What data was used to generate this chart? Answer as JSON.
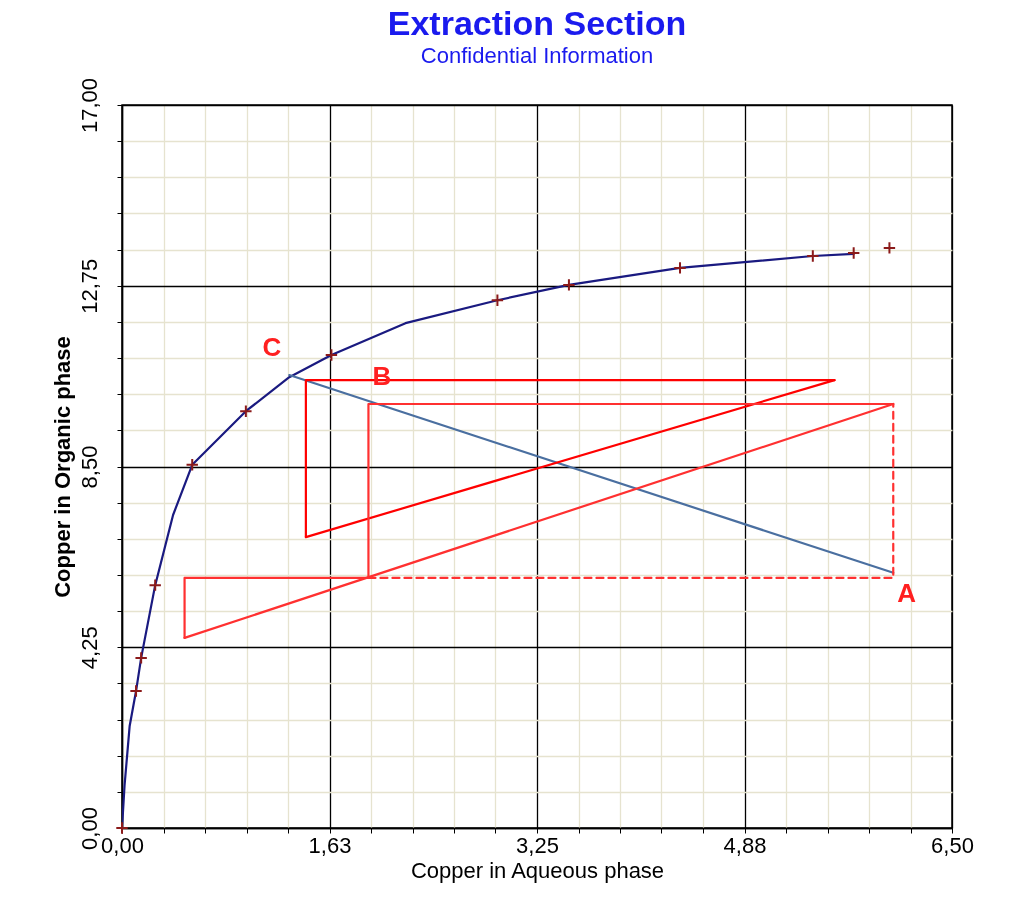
{
  "chart_data": {
    "type": "line",
    "title": "Extraction Section",
    "subtitle": "Confidential Information",
    "xlabel": "Copper in Aqueous phase",
    "ylabel": "Copper in Organic phase",
    "xlim": [
      0,
      6.5
    ],
    "ylim": [
      0,
      17
    ],
    "xticks": [
      {
        "value": 0,
        "label": "0,00"
      },
      {
        "value": 0.325,
        "label": null
      },
      {
        "value": 0.65,
        "label": null
      },
      {
        "value": 0.975,
        "label": null
      },
      {
        "value": 1.3,
        "label": null
      },
      {
        "value": 1.625,
        "label": "1,63"
      },
      {
        "value": 1.95,
        "label": null
      },
      {
        "value": 2.275,
        "label": null
      },
      {
        "value": 2.6,
        "label": null
      },
      {
        "value": 2.925,
        "label": null
      },
      {
        "value": 3.25,
        "label": "3,25"
      },
      {
        "value": 3.575,
        "label": null
      },
      {
        "value": 3.9,
        "label": null
      },
      {
        "value": 4.225,
        "label": null
      },
      {
        "value": 4.55,
        "label": null
      },
      {
        "value": 4.875,
        "label": "4,88"
      },
      {
        "value": 5.2,
        "label": null
      },
      {
        "value": 5.525,
        "label": null
      },
      {
        "value": 5.85,
        "label": null
      },
      {
        "value": 6.175,
        "label": null
      },
      {
        "value": 6.5,
        "label": "6,50"
      }
    ],
    "yticks": [
      {
        "value": 0,
        "label": "0,00"
      },
      {
        "value": 0.85,
        "label": null
      },
      {
        "value": 1.7,
        "label": null
      },
      {
        "value": 2.55,
        "label": null
      },
      {
        "value": 3.4,
        "label": null
      },
      {
        "value": 4.25,
        "label": "4,25"
      },
      {
        "value": 5.1,
        "label": null
      },
      {
        "value": 5.95,
        "label": null
      },
      {
        "value": 6.8,
        "label": null
      },
      {
        "value": 7.65,
        "label": null
      },
      {
        "value": 8.5,
        "label": "8,50"
      },
      {
        "value": 9.35,
        "label": null
      },
      {
        "value": 10.2,
        "label": null
      },
      {
        "value": 11.05,
        "label": null
      },
      {
        "value": 11.9,
        "label": null
      },
      {
        "value": 12.75,
        "label": "12,75"
      },
      {
        "value": 13.6,
        "label": null
      },
      {
        "value": 14.45,
        "label": null
      },
      {
        "value": 15.3,
        "label": null
      },
      {
        "value": 16.15,
        "label": null
      },
      {
        "value": 17,
        "label": "17,00"
      }
    ],
    "grid": true,
    "series": [
      {
        "color": "#1a1a80",
        "x": [
          0,
          0.02,
          0.06,
          0.11,
          0.15,
          0.26,
          0.4,
          0.55,
          0.97,
          1.31,
          1.64,
          2.22,
          2.94,
          3.5,
          4.37,
          5.41,
          5.73
        ],
        "values": [
          0,
          1.0,
          2.4,
          3.22,
          4.0,
          5.71,
          7.36,
          8.54,
          9.8,
          10.6,
          11.12,
          11.87,
          12.41,
          12.77,
          13.17,
          13.45,
          13.5
        ]
      },
      {
        "type": "scatter",
        "marker": "cross",
        "color": "#8b1a1a",
        "x": [
          0,
          0.11,
          0.15,
          0.26,
          0.55,
          0.97,
          1.64,
          2.94,
          3.5,
          4.37,
          5.41,
          5.73,
          6.01
        ],
        "values": [
          0,
          3.22,
          4.0,
          5.71,
          8.54,
          9.8,
          11.12,
          12.41,
          12.77,
          13.17,
          13.45,
          13.52,
          13.64
        ]
      },
      {
        "color": "#4a6fa0",
        "x": [
          1.31,
          6.04
        ],
        "values": [
          10.65,
          6.0
        ]
      },
      {
        "color": "#ff0000",
        "x": [
          1.44,
          1.44,
          5.58
        ],
        "values": [
          6.84,
          10.53,
          10.53
        ]
      },
      {
        "color": "#ff0000",
        "x": [
          1.44,
          5.58
        ],
        "values": [
          6.84,
          10.53
        ]
      },
      {
        "color": "#ff3030",
        "x": [
          0.49,
          0.49,
          1.93,
          1.93,
          6.04
        ],
        "values": [
          4.47,
          5.88,
          5.88,
          9.97,
          9.97
        ]
      },
      {
        "color": "#ff3030",
        "x": [
          0.49,
          6.04
        ],
        "values": [
          4.47,
          9.97
        ]
      },
      {
        "color": "#ff3030",
        "line_style": "dashed",
        "x": [
          1.93,
          6.04,
          6.04
        ],
        "values": [
          5.88,
          5.88,
          9.97
        ]
      }
    ],
    "annotations": [
      {
        "text": "A",
        "x": 6.04,
        "y": 6.0
      },
      {
        "text": "B",
        "x": 1.93,
        "y": 9.97
      },
      {
        "text": "C",
        "x": 1.31,
        "y": 10.65
      }
    ]
  }
}
